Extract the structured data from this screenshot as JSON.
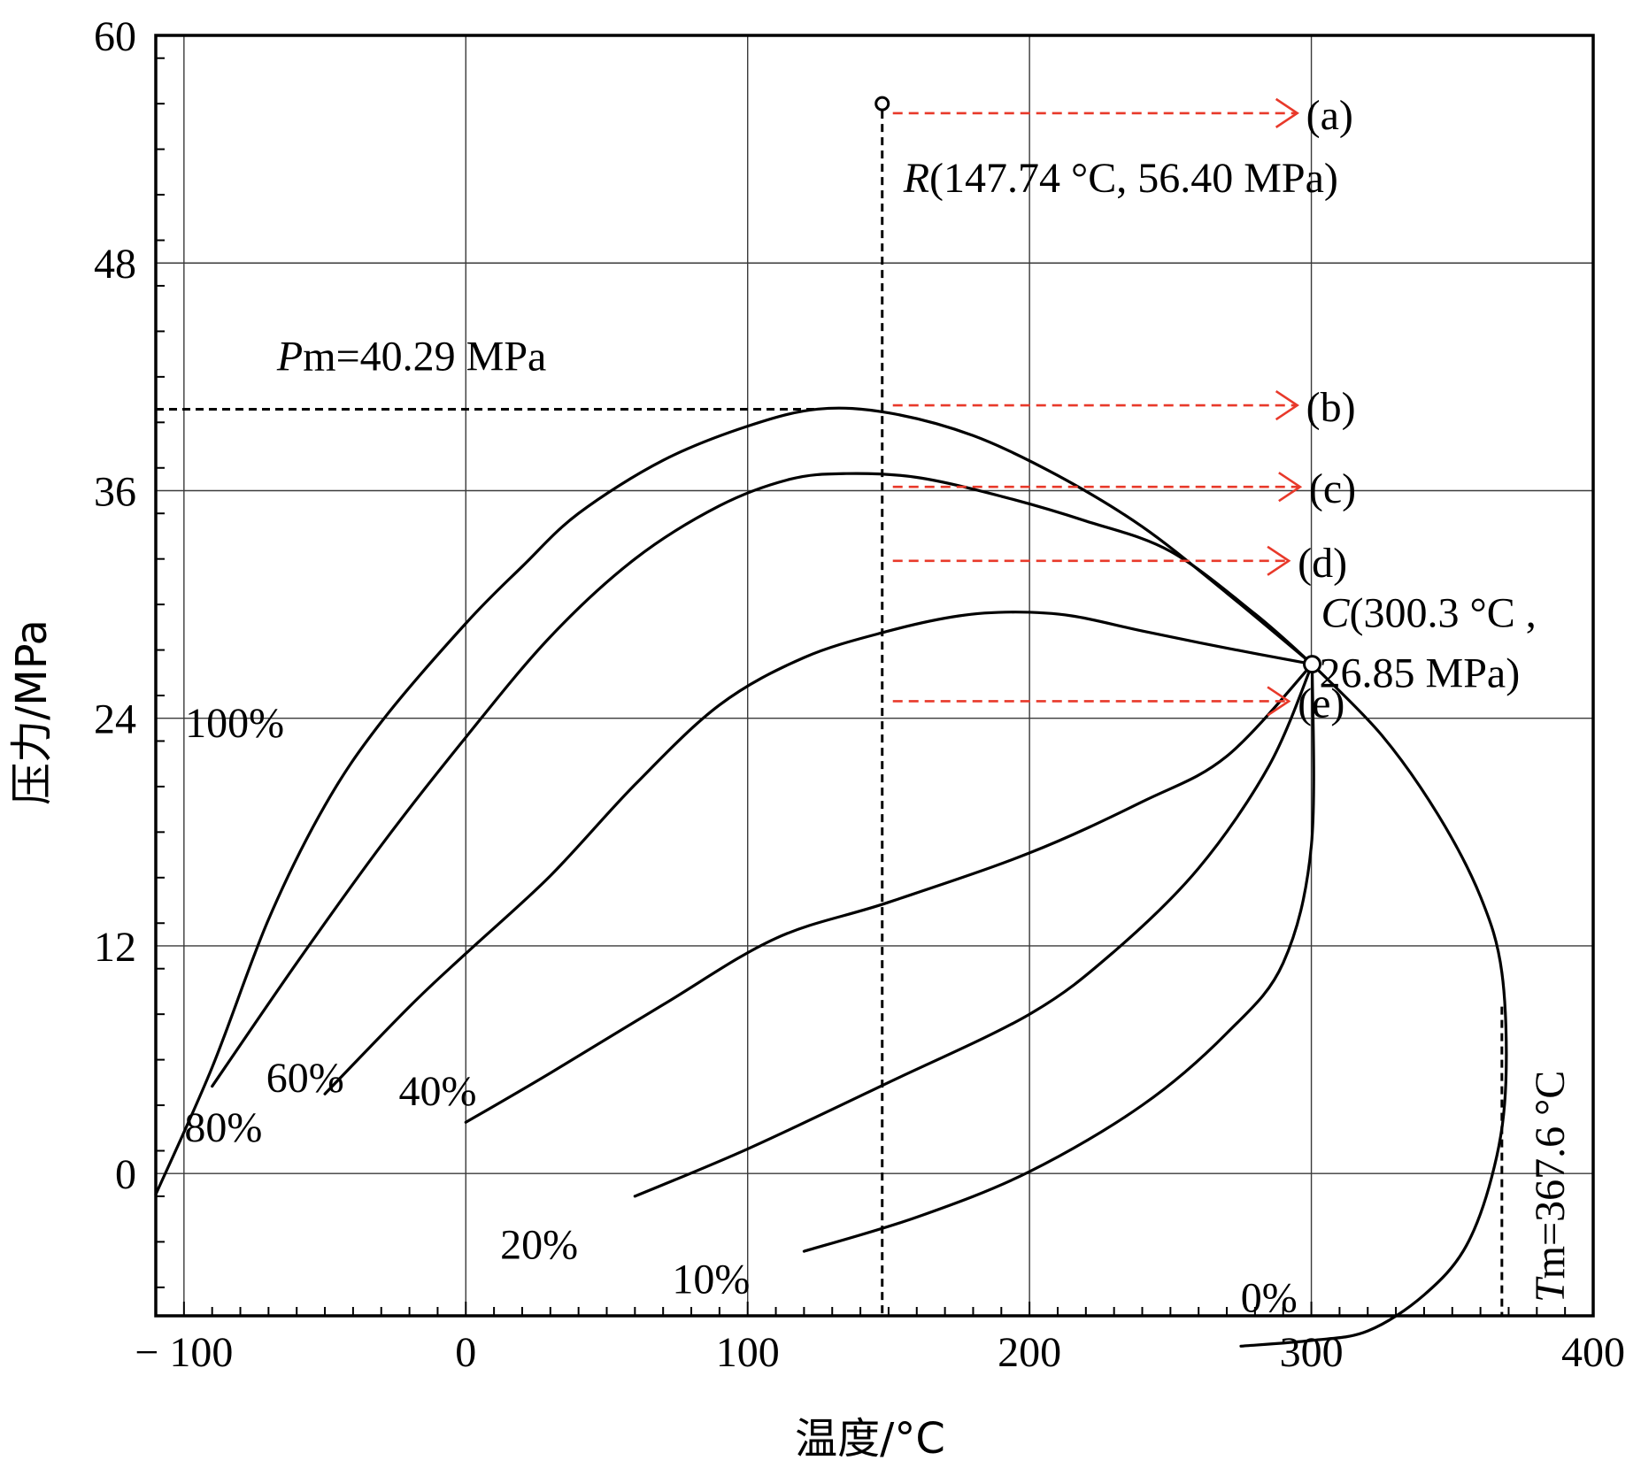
{
  "chart_data": {
    "type": "line",
    "title": "",
    "xlabel": "温度/°C",
    "ylabel": "压力/MPa",
    "xlim": [
      -110,
      400
    ],
    "ylim": [
      -7.5,
      60
    ],
    "x_ticks": [
      -100,
      0,
      100,
      200,
      300,
      400
    ],
    "x_tick_labels": [
      "− 100",
      "0",
      "100",
      "200",
      "300",
      "400"
    ],
    "y_ticks": [
      0,
      12,
      24,
      36,
      48,
      60
    ],
    "y_tick_labels": [
      "0",
      "12",
      "24",
      "36",
      "48",
      "60"
    ],
    "grid": true,
    "series": [
      {
        "name": "100%",
        "points": [
          [
            -110,
            -1.1
          ],
          [
            -90,
            5.6
          ],
          [
            -70,
            13.4
          ],
          [
            -50,
            19.4
          ],
          [
            -30,
            23.8
          ],
          [
            0,
            29.0
          ],
          [
            20,
            32.0
          ],
          [
            40,
            34.8
          ],
          [
            70,
            37.6
          ],
          [
            100,
            39.4
          ],
          [
            125,
            40.3
          ],
          [
            150,
            40.1
          ],
          [
            180,
            38.9
          ],
          [
            210,
            36.8
          ],
          [
            240,
            34.1
          ],
          [
            270,
            30.6
          ],
          [
            300.3,
            26.85
          ]
        ]
      },
      {
        "name": "80%",
        "points": [
          [
            -90,
            4.6
          ],
          [
            -60,
            11.1
          ],
          [
            -30,
            17.3
          ],
          [
            0,
            23.0
          ],
          [
            30,
            28.3
          ],
          [
            60,
            32.4
          ],
          [
            90,
            35.2
          ],
          [
            115,
            36.6
          ],
          [
            135,
            36.9
          ],
          [
            160,
            36.7
          ],
          [
            190,
            35.7
          ],
          [
            220,
            34.4
          ],
          [
            250,
            32.8
          ],
          [
            280,
            29.5
          ],
          [
            300.3,
            26.85
          ]
        ]
      },
      {
        "name": "60%",
        "points": [
          [
            -50,
            4.2
          ],
          [
            -20,
            8.8
          ],
          [
            0,
            11.6
          ],
          [
            30,
            15.7
          ],
          [
            60,
            20.5
          ],
          [
            90,
            24.7
          ],
          [
            120,
            27.2
          ],
          [
            150,
            28.6
          ],
          [
            175,
            29.4
          ],
          [
            195,
            29.6
          ],
          [
            215,
            29.4
          ],
          [
            240,
            28.6
          ],
          [
            270,
            27.7
          ],
          [
            300.3,
            26.85
          ]
        ]
      },
      {
        "name": "40%",
        "points": [
          [
            0,
            2.7
          ],
          [
            30,
            5.3
          ],
          [
            70,
            8.9
          ],
          [
            110,
            12.4
          ],
          [
            150,
            14.3
          ],
          [
            200,
            16.9
          ],
          [
            240,
            19.6
          ],
          [
            270,
            22.0
          ],
          [
            300.3,
            26.85
          ]
        ]
      },
      {
        "name": "20%",
        "points": [
          [
            60,
            -1.2
          ],
          [
            100,
            1.3
          ],
          [
            150,
            4.8
          ],
          [
            200,
            8.4
          ],
          [
            230,
            11.7
          ],
          [
            260,
            16.1
          ],
          [
            285,
            21.5
          ],
          [
            300.3,
            26.85
          ]
        ]
      },
      {
        "name": "10%",
        "points": [
          [
            120,
            -4.1
          ],
          [
            160,
            -2.3
          ],
          [
            200,
            0.1
          ],
          [
            240,
            3.6
          ],
          [
            270,
            7.4
          ],
          [
            290,
            11.1
          ],
          [
            300,
            17.3
          ],
          [
            300.3,
            26.85
          ]
        ]
      },
      {
        "name": "0%",
        "points": [
          [
            275,
            -9.1
          ],
          [
            300,
            -8.8
          ],
          [
            320,
            -8.3
          ],
          [
            340,
            -6.4
          ],
          [
            355,
            -3.8
          ],
          [
            365,
            0.4
          ],
          [
            369,
            4.8
          ],
          [
            367.6,
            10.6
          ],
          [
            360,
            14.6
          ],
          [
            345,
            18.9
          ],
          [
            325,
            23.1
          ],
          [
            300.3,
            26.85
          ]
        ]
      }
    ],
    "critical_point": {
      "x": 300.3,
      "y": 26.85
    },
    "r_point": {
      "x": 147.74,
      "y": 56.4
    },
    "pm_line": {
      "x_from": -110,
      "x_to": 125,
      "y": 40.29
    },
    "tm_line": {
      "x": 367.6,
      "y_from": -9.9,
      "y_to": 8.8
    },
    "arrows": [
      {
        "label": "(a)",
        "y": 55.9,
        "x_from": 147.74,
        "x_to": 295
      },
      {
        "label": "(b)",
        "y": 40.5,
        "x_from": 147.74,
        "x_to": 295
      },
      {
        "label": "(c)",
        "y": 36.2,
        "x_from": 147.74,
        "x_to": 296
      },
      {
        "label": "(d)",
        "y": 32.3,
        "x_from": 147.74,
        "x_to": 292
      },
      {
        "label": "(e)",
        "y": 24.9,
        "x_from": 147.74,
        "x_to": 292
      }
    ],
    "annotations": {
      "r_label_italic": "R",
      "r_label_rest": "(147.74 °C, 56.40 MPa)",
      "c_label_italic": "C",
      "c_label_line1_rest": "(300.3 °C ,",
      "c_label_line2": "26.85 MPa)",
      "pm_label_italic": "P",
      "pm_label_rest": "m=40.29 MPa",
      "tm_label_italic": "T",
      "tm_label_rest": "m=367.6 °C"
    },
    "curve_label_positions_data": [
      {
        "series": "100%",
        "x": -82,
        "y": 23.0
      },
      {
        "series": "80%",
        "x": -86,
        "y": 1.7
      },
      {
        "series": "60%",
        "x": -57,
        "y": 4.3
      },
      {
        "series": "40%",
        "x": -10,
        "y": 3.6
      },
      {
        "series": "20%",
        "x": 26,
        "y": -4.5
      },
      {
        "series": "10%",
        "x": 87,
        "y": -6.3
      },
      {
        "series": "0%",
        "x": 285,
        "y": -7.3
      }
    ],
    "colors": {
      "curves": "#000000",
      "arrows": "#e8392a",
      "grid": "#3a3a3a"
    }
  }
}
